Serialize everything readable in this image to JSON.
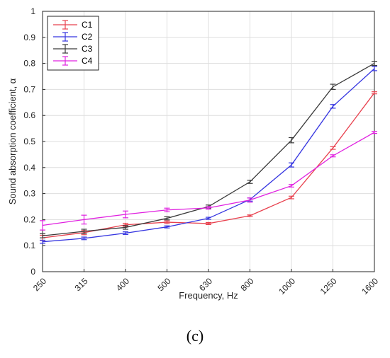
{
  "panel_label": "(c)",
  "chart_data": {
    "type": "line",
    "xlabel": "Frequency, Hz",
    "ylabel": "Sound absorption coefficient, α",
    "categories": [
      "250",
      "315",
      "400",
      "500",
      "630",
      "800",
      "1000",
      "1250",
      "1600"
    ],
    "yticks": [
      "0",
      "0.1",
      "0.2",
      "0.3",
      "0.4",
      "0.5",
      "0.6",
      "0.7",
      "0.8",
      "0.9",
      "1"
    ],
    "ylim": [
      0,
      1
    ],
    "grid": true,
    "legend_position": "top-left",
    "series": [
      {
        "name": "C1",
        "color": "#e8414e",
        "values": [
          0.13,
          0.15,
          0.18,
          0.19,
          0.185,
          0.215,
          0.285,
          0.475,
          0.687
        ],
        "errors": [
          0.01,
          0.008,
          0.006,
          0.005,
          0.004,
          0.003,
          0.005,
          0.005,
          0.004
        ]
      },
      {
        "name": "C2",
        "color": "#3535e0",
        "values": [
          0.115,
          0.128,
          0.148,
          0.172,
          0.205,
          0.277,
          0.41,
          0.635,
          0.78
        ],
        "errors": [
          0.006,
          0.005,
          0.005,
          0.004,
          0.004,
          0.006,
          0.008,
          0.007,
          0.008
        ]
      },
      {
        "name": "C3",
        "color": "#3a3a3a",
        "values": [
          0.138,
          0.155,
          0.17,
          0.205,
          0.25,
          0.345,
          0.505,
          0.71,
          0.8
        ],
        "errors": [
          0.008,
          0.008,
          0.007,
          0.006,
          0.006,
          0.006,
          0.01,
          0.01,
          0.008
        ]
      },
      {
        "name": "C4",
        "color": "#e020e0",
        "values": [
          0.178,
          0.2,
          0.22,
          0.237,
          0.245,
          0.275,
          0.33,
          0.445,
          0.535
        ],
        "errors": [
          0.018,
          0.017,
          0.013,
          0.007,
          0.005,
          0.008,
          0.005,
          0.004,
          0.004
        ]
      }
    ]
  }
}
